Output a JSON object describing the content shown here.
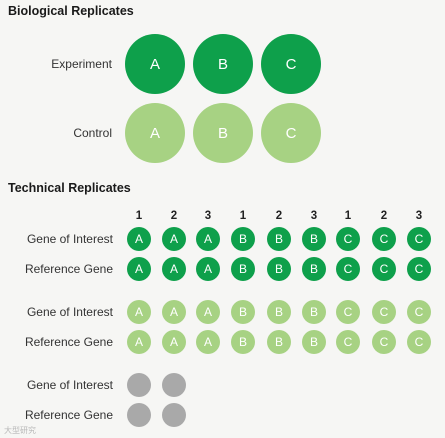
{
  "biological": {
    "title": "Biological Replicates",
    "rows": [
      {
        "label": "Experiment",
        "tone": "dark",
        "replicates": [
          "A",
          "B",
          "C"
        ]
      },
      {
        "label": "Control",
        "tone": "light",
        "replicates": [
          "A",
          "B",
          "C"
        ]
      }
    ]
  },
  "technical": {
    "title": "Technical Replicates",
    "columns": [
      "1",
      "2",
      "3",
      "1",
      "2",
      "3",
      "1",
      "2",
      "3"
    ],
    "rows": [
      {
        "label": "Gene of Interest",
        "tone": "dark",
        "cells": [
          "A",
          "A",
          "A",
          "B",
          "B",
          "B",
          "C",
          "C",
          "C"
        ]
      },
      {
        "label": "Reference Gene",
        "tone": "dark",
        "cells": [
          "A",
          "A",
          "A",
          "B",
          "B",
          "B",
          "C",
          "C",
          "C"
        ]
      },
      {
        "label": "Gene of Interest",
        "tone": "light",
        "cells": [
          "A",
          "A",
          "A",
          "B",
          "B",
          "B",
          "C",
          "C",
          "C"
        ]
      },
      {
        "label": "Reference Gene",
        "tone": "light",
        "cells": [
          "A",
          "A",
          "A",
          "B",
          "B",
          "B",
          "C",
          "C",
          "C"
        ]
      },
      {
        "label": "Gene of Interest",
        "tone": "gray",
        "cells": [
          "",
          ""
        ]
      },
      {
        "label": "Reference Gene",
        "tone": "gray",
        "cells": [
          "",
          ""
        ]
      }
    ]
  },
  "colors": {
    "dark": "#0ea04b",
    "light": "#a7d283",
    "gray": "#a9a9a9"
  },
  "watermark": "大型研究"
}
